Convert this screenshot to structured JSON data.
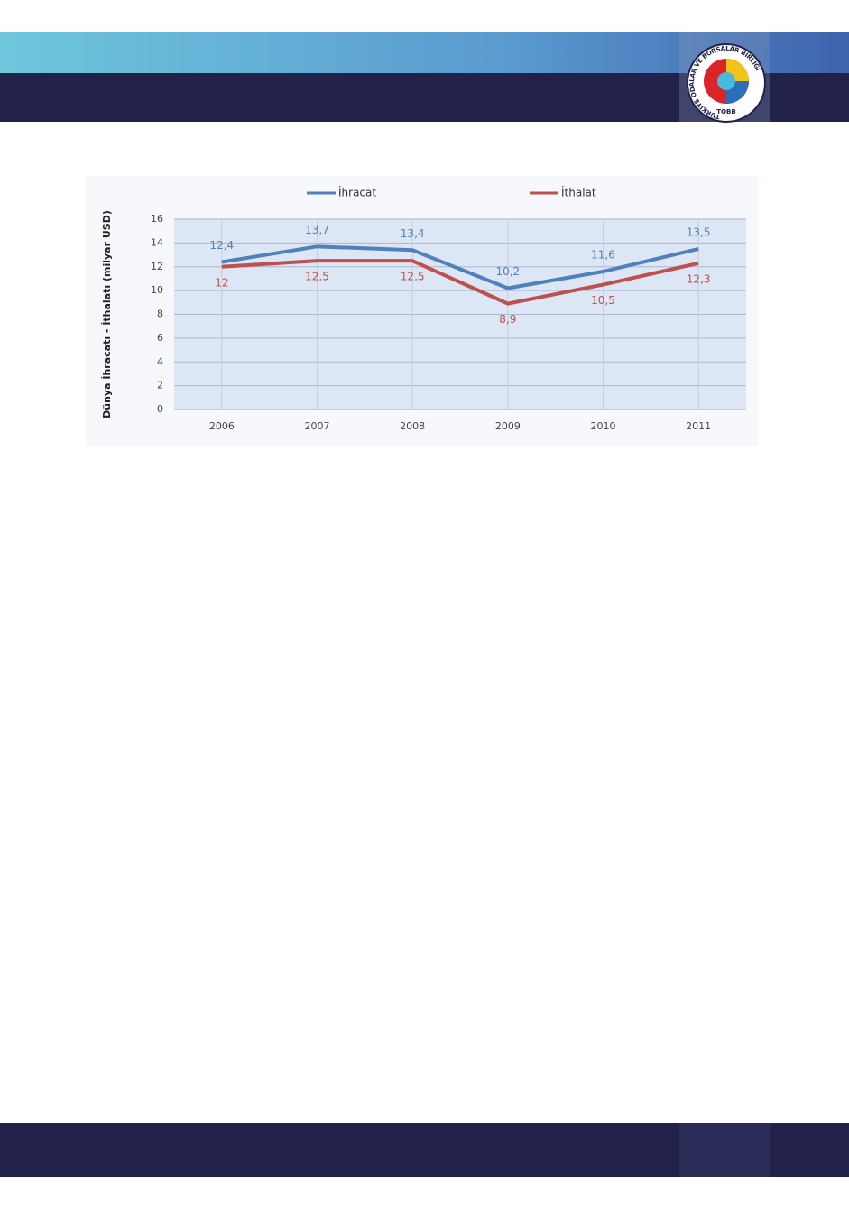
{
  "logo": {
    "ring_text": "TÜRKİYE ODALAR VE BORSALAR BİRLİĞİ",
    "abbr": "TOBB"
  },
  "chart_data": {
    "type": "line",
    "y_label": "Dünya İhracatı - İthalatı (milyar USD)",
    "categories": [
      "2006",
      "2007",
      "2008",
      "2009",
      "2010",
      "2011"
    ],
    "series": [
      {
        "name": "İhracat",
        "color": "#4f81bd",
        "values": [
          12.4,
          13.7,
          13.4,
          10.2,
          11.6,
          13.5
        ],
        "value_labels": [
          "12,4",
          "13,7",
          "13,4",
          "10,2",
          "11,6",
          "13,5"
        ]
      },
      {
        "name": "İthalat",
        "color": "#c0504d",
        "values": [
          12,
          12.5,
          12.5,
          8.9,
          10.5,
          12.3
        ],
        "value_labels": [
          "12",
          "12,5",
          "12,5",
          "8,9",
          "10,5",
          "12,3"
        ]
      }
    ],
    "ylim": [
      0,
      16
    ],
    "yticks": [
      0,
      2,
      4,
      6,
      8,
      10,
      12,
      14,
      16
    ],
    "grid": true,
    "legend": "top"
  }
}
